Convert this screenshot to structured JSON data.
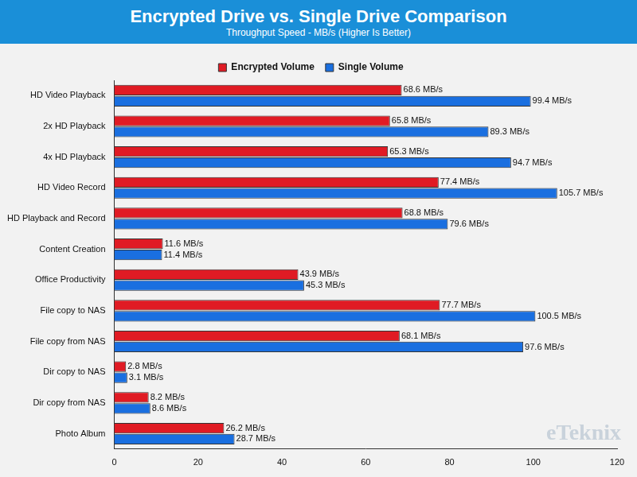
{
  "chart_data": {
    "type": "bar",
    "orientation": "horizontal",
    "title": "Encrypted Drive vs. Single Drive Comparison",
    "subtitle": "Throughput Speed - MB/s (Higher Is Better)",
    "categories": [
      "HD Video Playback",
      "2x HD Playback",
      "4x HD Playback",
      "HD Video Record",
      "HD Playback and Record",
      "Content Creation",
      "Office Productivity",
      "File copy to NAS",
      "File copy from NAS",
      "Dir copy to NAS",
      "Dir copy from NAS",
      "Photo Album"
    ],
    "series": [
      {
        "name": "Encrypted Volume",
        "color": "#e01b24",
        "values": [
          68.6,
          65.8,
          65.3,
          77.4,
          68.8,
          11.6,
          43.9,
          77.7,
          68.1,
          2.8,
          8.2,
          26.2
        ],
        "value_labels": [
          "68.6 MB/s",
          "65.8 MB/s",
          "65.3 MB/s",
          "77.4 MB/s",
          "68.8 MB/s",
          "11.6 MB/s",
          "43.9 MB/s",
          "77.7 MB/s",
          "68.1 MB/s",
          "2.8 MB/s",
          "8.2 MB/s",
          "26.2 MB/s"
        ]
      },
      {
        "name": "Single Volume",
        "color": "#1a6fe0",
        "values": [
          99.4,
          89.3,
          94.7,
          105.7,
          79.6,
          11.4,
          45.3,
          100.5,
          97.6,
          3.1,
          8.6,
          28.7
        ],
        "value_labels": [
          "99.4 MB/s",
          "89.3 MB/s",
          "94.7 MB/s",
          "105.7 MB/s",
          "79.6 MB/s",
          "11.4 MB/s",
          "45.3 MB/s",
          "100.5 MB/s",
          "97.6 MB/s",
          "3.1 MB/s",
          "8.6 MB/s",
          "28.7 MB/s"
        ]
      }
    ],
    "xlim": [
      0,
      120
    ],
    "xticks": [
      0,
      20,
      40,
      60,
      80,
      100,
      120
    ],
    "grid": false,
    "legend": "top",
    "data_labels": true,
    "annotations": [
      "eTeknix"
    ]
  }
}
